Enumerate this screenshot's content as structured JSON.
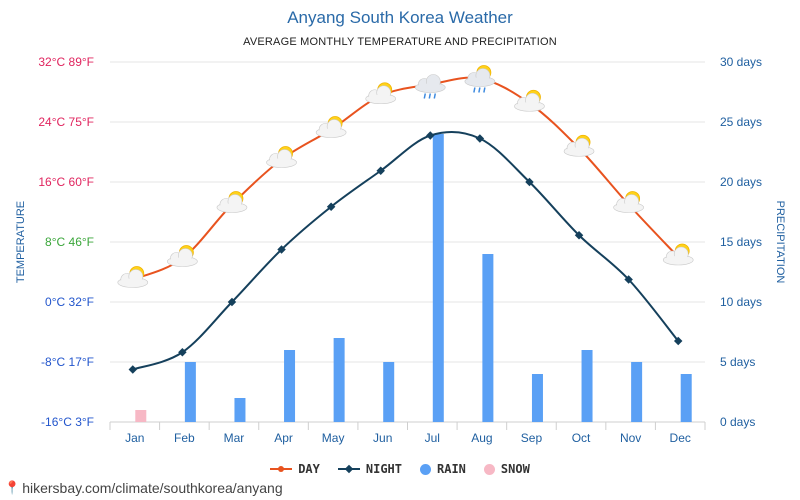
{
  "header": {
    "title": "Anyang South Korea Weather",
    "subtitle": "AVERAGE MONTHLY TEMPERATURE AND PRECIPITATION"
  },
  "footer": {
    "source": "hikersbay.com/climate/southkorea/anyang"
  },
  "legend": {
    "day": "DAY",
    "night": "NIGHT",
    "rain": "RAIN",
    "snow": "SNOW"
  },
  "colors": {
    "day": "#e8531f",
    "night": "#15405c",
    "rain": "#5aa0f5",
    "snow": "#f7b8c5",
    "grid": "#e6e6e6"
  },
  "chart_data": {
    "type": "bar+line",
    "categories": [
      "Jan",
      "Feb",
      "Mar",
      "Apr",
      "May",
      "Jun",
      "Jul",
      "Aug",
      "Sep",
      "Oct",
      "Nov",
      "Dec"
    ],
    "left_axis": {
      "label": "TEMPERATURE",
      "ticks": [
        {
          "value": 32,
          "label": "32°C 89°F",
          "color": "#e0245e"
        },
        {
          "value": 24,
          "label": "24°C 75°F",
          "color": "#e0245e"
        },
        {
          "value": 16,
          "label": "16°C 60°F",
          "color": "#e0245e"
        },
        {
          "value": 8,
          "label": "8°C 46°F",
          "color": "#3aa63a"
        },
        {
          "value": 0,
          "label": "0°C 32°F",
          "color": "#2255cc"
        },
        {
          "value": -8,
          "label": "-8°C 17°F",
          "color": "#2255cc"
        },
        {
          "value": -16,
          "label": "-16°C 3°F",
          "color": "#2255cc"
        }
      ],
      "range": [
        -16,
        32
      ]
    },
    "right_axis": {
      "label": "PRECIPITATION",
      "ticks": [
        {
          "value": 30,
          "label": "30 days"
        },
        {
          "value": 25,
          "label": "25 days"
        },
        {
          "value": 20,
          "label": "20 days"
        },
        {
          "value": 15,
          "label": "15 days"
        },
        {
          "value": 10,
          "label": "10 days"
        },
        {
          "value": 5,
          "label": "5 days"
        },
        {
          "value": 0,
          "label": "0 days"
        }
      ],
      "range": [
        0,
        30
      ]
    },
    "series": [
      {
        "name": "DAY",
        "unit": "°C",
        "values": [
          3.0,
          5.8,
          13.0,
          19.0,
          23.0,
          27.5,
          29.0,
          29.8,
          26.5,
          20.5,
          13.0,
          6.0
        ]
      },
      {
        "name": "NIGHT",
        "unit": "°C",
        "values": [
          -9.0,
          -6.7,
          0.0,
          7.0,
          12.7,
          17.5,
          22.2,
          21.8,
          16.0,
          8.9,
          3.0,
          -5.2
        ]
      },
      {
        "name": "RAIN",
        "unit": "days",
        "values": [
          0,
          5,
          2,
          6,
          7,
          5,
          24,
          14,
          4,
          6,
          5,
          4
        ]
      },
      {
        "name": "SNOW",
        "unit": "days",
        "values": [
          1,
          0,
          0,
          0,
          0,
          0,
          0,
          0,
          0,
          0,
          0,
          0
        ]
      }
    ],
    "weather_icons": [
      "sun-cloud",
      "sun-cloud",
      "sun-cloud",
      "sun-cloud",
      "sun-cloud",
      "sun-cloud",
      "rain-cloud",
      "rain-sun-cloud",
      "sun-cloud",
      "sun-cloud",
      "sun-cloud",
      "sun-cloud"
    ],
    "grid": true,
    "legend_position": "bottom-center"
  }
}
